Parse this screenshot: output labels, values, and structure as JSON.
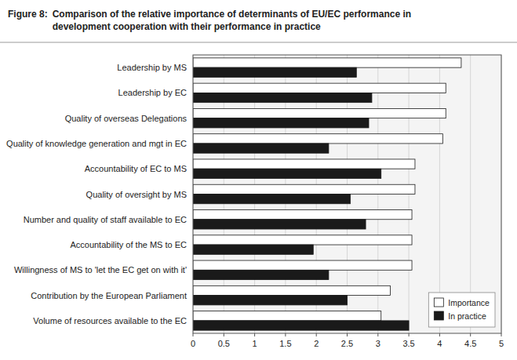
{
  "chart_data": {
    "type": "bar",
    "orientation": "horizontal",
    "title": "Figure 8:",
    "subtitle": "Comparison of the relative importance of determinants of EU/EC performance in\ndevelopment cooperation with their performance in practice",
    "categories": [
      "Leadership by MS",
      "Leadership by EC",
      "Quality of overseas Delegations",
      "Quality of knowledge generation and mgt in EC",
      "Accountability of EC to MS",
      "Quality of oversight by MS",
      "Number and quality of staff available to EC",
      "Accountability of the MS to EC",
      "Willingness of MS to 'let the EC get on with it'",
      "Contribution by the European Parliament",
      "Volume of resources available to the EC"
    ],
    "series": [
      {
        "name": "Importance",
        "color": "#ffffff",
        "values": [
          4.35,
          4.1,
          4.1,
          4.05,
          3.6,
          3.6,
          3.55,
          3.55,
          3.55,
          3.2,
          3.05
        ]
      },
      {
        "name": "In practice",
        "color": "#1a1a1a",
        "values": [
          2.65,
          2.9,
          2.85,
          2.2,
          3.05,
          2.55,
          2.8,
          1.95,
          2.2,
          2.5,
          3.5
        ]
      }
    ],
    "xlim": [
      0,
      5
    ],
    "xticks": [
      0,
      0.5,
      1,
      1.5,
      2,
      2.5,
      3,
      3.5,
      4,
      4.5,
      5
    ],
    "grid": true,
    "legend": "lower right"
  }
}
